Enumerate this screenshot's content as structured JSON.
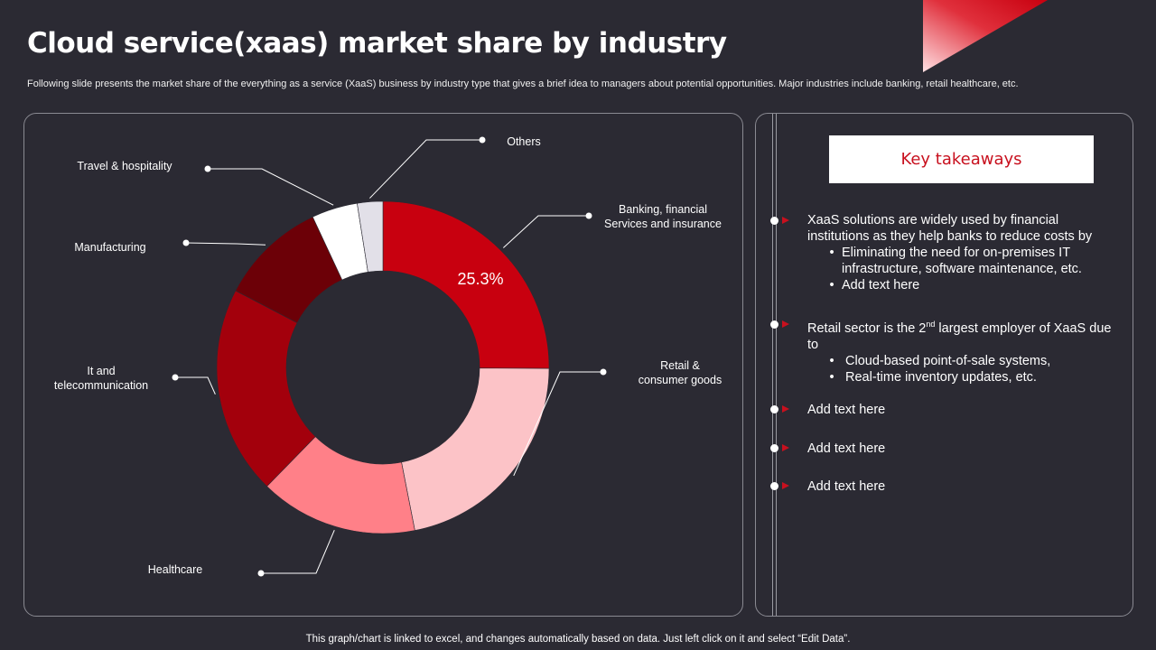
{
  "title": "Cloud service(xaas) market share by industry",
  "subtitle": "Following slide presents the market share of the everything  as a service (XaaS) business by industry type  that gives a brief idea to managers about potential opportunities. Major industries include banking, retail healthcare, etc.",
  "chart_data": {
    "type": "pie",
    "variant": "donut",
    "highlight_label": "25.3%",
    "categories": [
      "Banking, financial\nServices and insurance",
      "Retail &\nconsumer goods",
      "Healthcare",
      "It and\ntelecommunication",
      "Manufacturing",
      "Travel  & hospitality",
      "Others"
    ],
    "values": [
      25.3,
      22.0,
      15.5,
      20.5,
      10.5,
      4.5,
      2.5
    ],
    "colors": [
      "#c8000f",
      "#fcc3c7",
      "#ff8088",
      "#a3000c",
      "#6c0007",
      "#ffffff",
      "#e2e0e8"
    ],
    "legend": "callout labels"
  },
  "takeaways": {
    "heading": "Key takeaways",
    "items": [
      {
        "text": "XaaS solutions are widely used by financial institutions as they help banks to reduce costs by",
        "subitems": [
          "Eliminating the need for on-premises IT infrastructure, software maintenance, etc.",
          "Add text here"
        ]
      },
      {
        "text_before": "Retail sector is the 2",
        "text_sup": "nd",
        "text_after": " largest employer of XaaS due to",
        "subitems": [
          "Cloud-based point-of-sale systems,",
          "Real-time inventory updates, etc."
        ]
      },
      {
        "text": "Add text here"
      },
      {
        "text": "Add text here"
      },
      {
        "text": "Add text here"
      }
    ],
    "bullet_glyph": "•"
  },
  "footer": "This graph/chart is linked to excel,  and changes automatically based on data. Just left click on it and select “Edit Data”.",
  "colors": {
    "background": "#2b2a33",
    "accent": "#c8101e"
  }
}
